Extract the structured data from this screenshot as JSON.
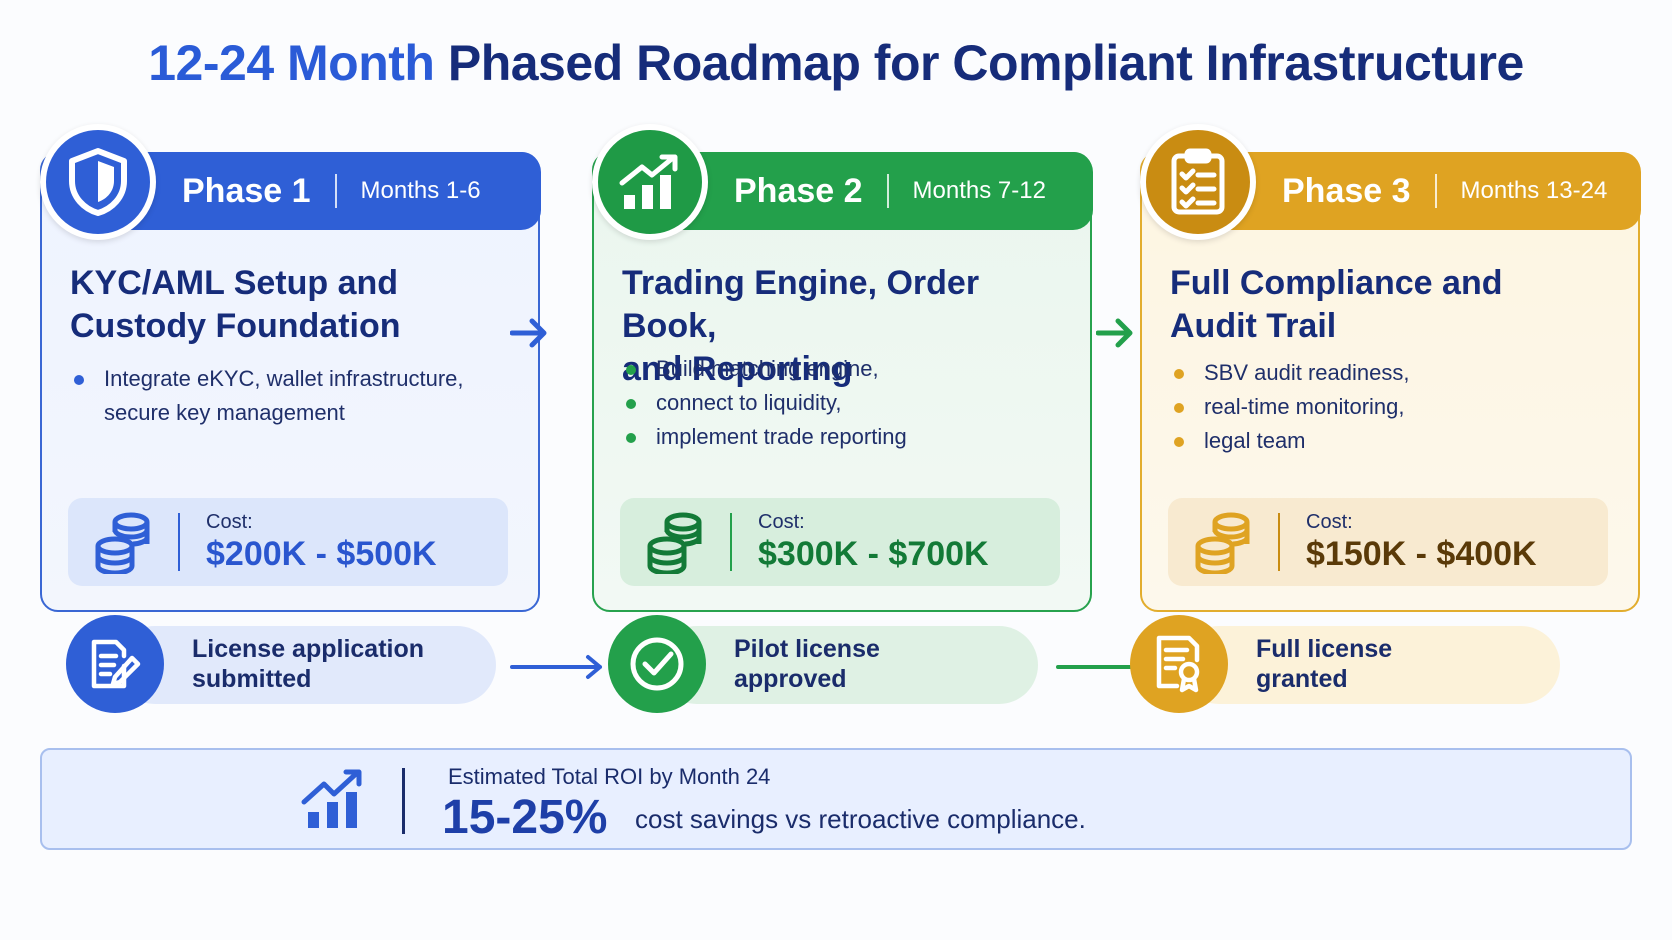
{
  "title": {
    "accent": "12-24 Month",
    "rest": "Phased Roadmap for Compliant Infrastructure"
  },
  "phases": [
    {
      "name": "Phase 1",
      "months": "Months 1-6",
      "icon": "shield-icon",
      "title_line1": "KYC/AML Setup and",
      "title_line2": "Custody Foundation",
      "bullets": [
        "Integrate eKYC, wallet infrastructure, secure key management"
      ],
      "cost_label": "Cost:",
      "cost_value": "$200K - $500K",
      "color": "#2f5fd6"
    },
    {
      "name": "Phase 2",
      "months": "Months 7-12",
      "icon": "growth-chart-icon",
      "title_line1": "Trading Engine, Order Book,",
      "title_line2": "and Reporting",
      "bullets": [
        "Build matching engine,",
        "connect to liquidity,",
        "implement trade reporting"
      ],
      "cost_label": "Cost:",
      "cost_value": "$300K - $700K",
      "color": "#23a04b"
    },
    {
      "name": "Phase 3",
      "months": "Months 13-24",
      "icon": "clipboard-checklist-icon",
      "title_line1": "Full Compliance and",
      "title_line2": "Audit Trail",
      "bullets": [
        "SBV audit readiness,",
        "real-time monitoring,",
        "legal team"
      ],
      "cost_label": "Cost:",
      "cost_value": "$150K - $400K",
      "color": "#dfa322"
    }
  ],
  "milestones": [
    {
      "line1": "License application",
      "line2": "submitted",
      "icon": "document-pen-icon"
    },
    {
      "line1": "Pilot license",
      "line2": "approved",
      "icon": "check-circle-icon"
    },
    {
      "line1": "Full license",
      "line2": "granted",
      "icon": "certificate-icon"
    }
  ],
  "roi": {
    "label": "Estimated Total ROI by Month 24",
    "value": "15-25%",
    "description": "cost savings vs retroactive compliance.",
    "icon": "growth-chart-icon"
  }
}
